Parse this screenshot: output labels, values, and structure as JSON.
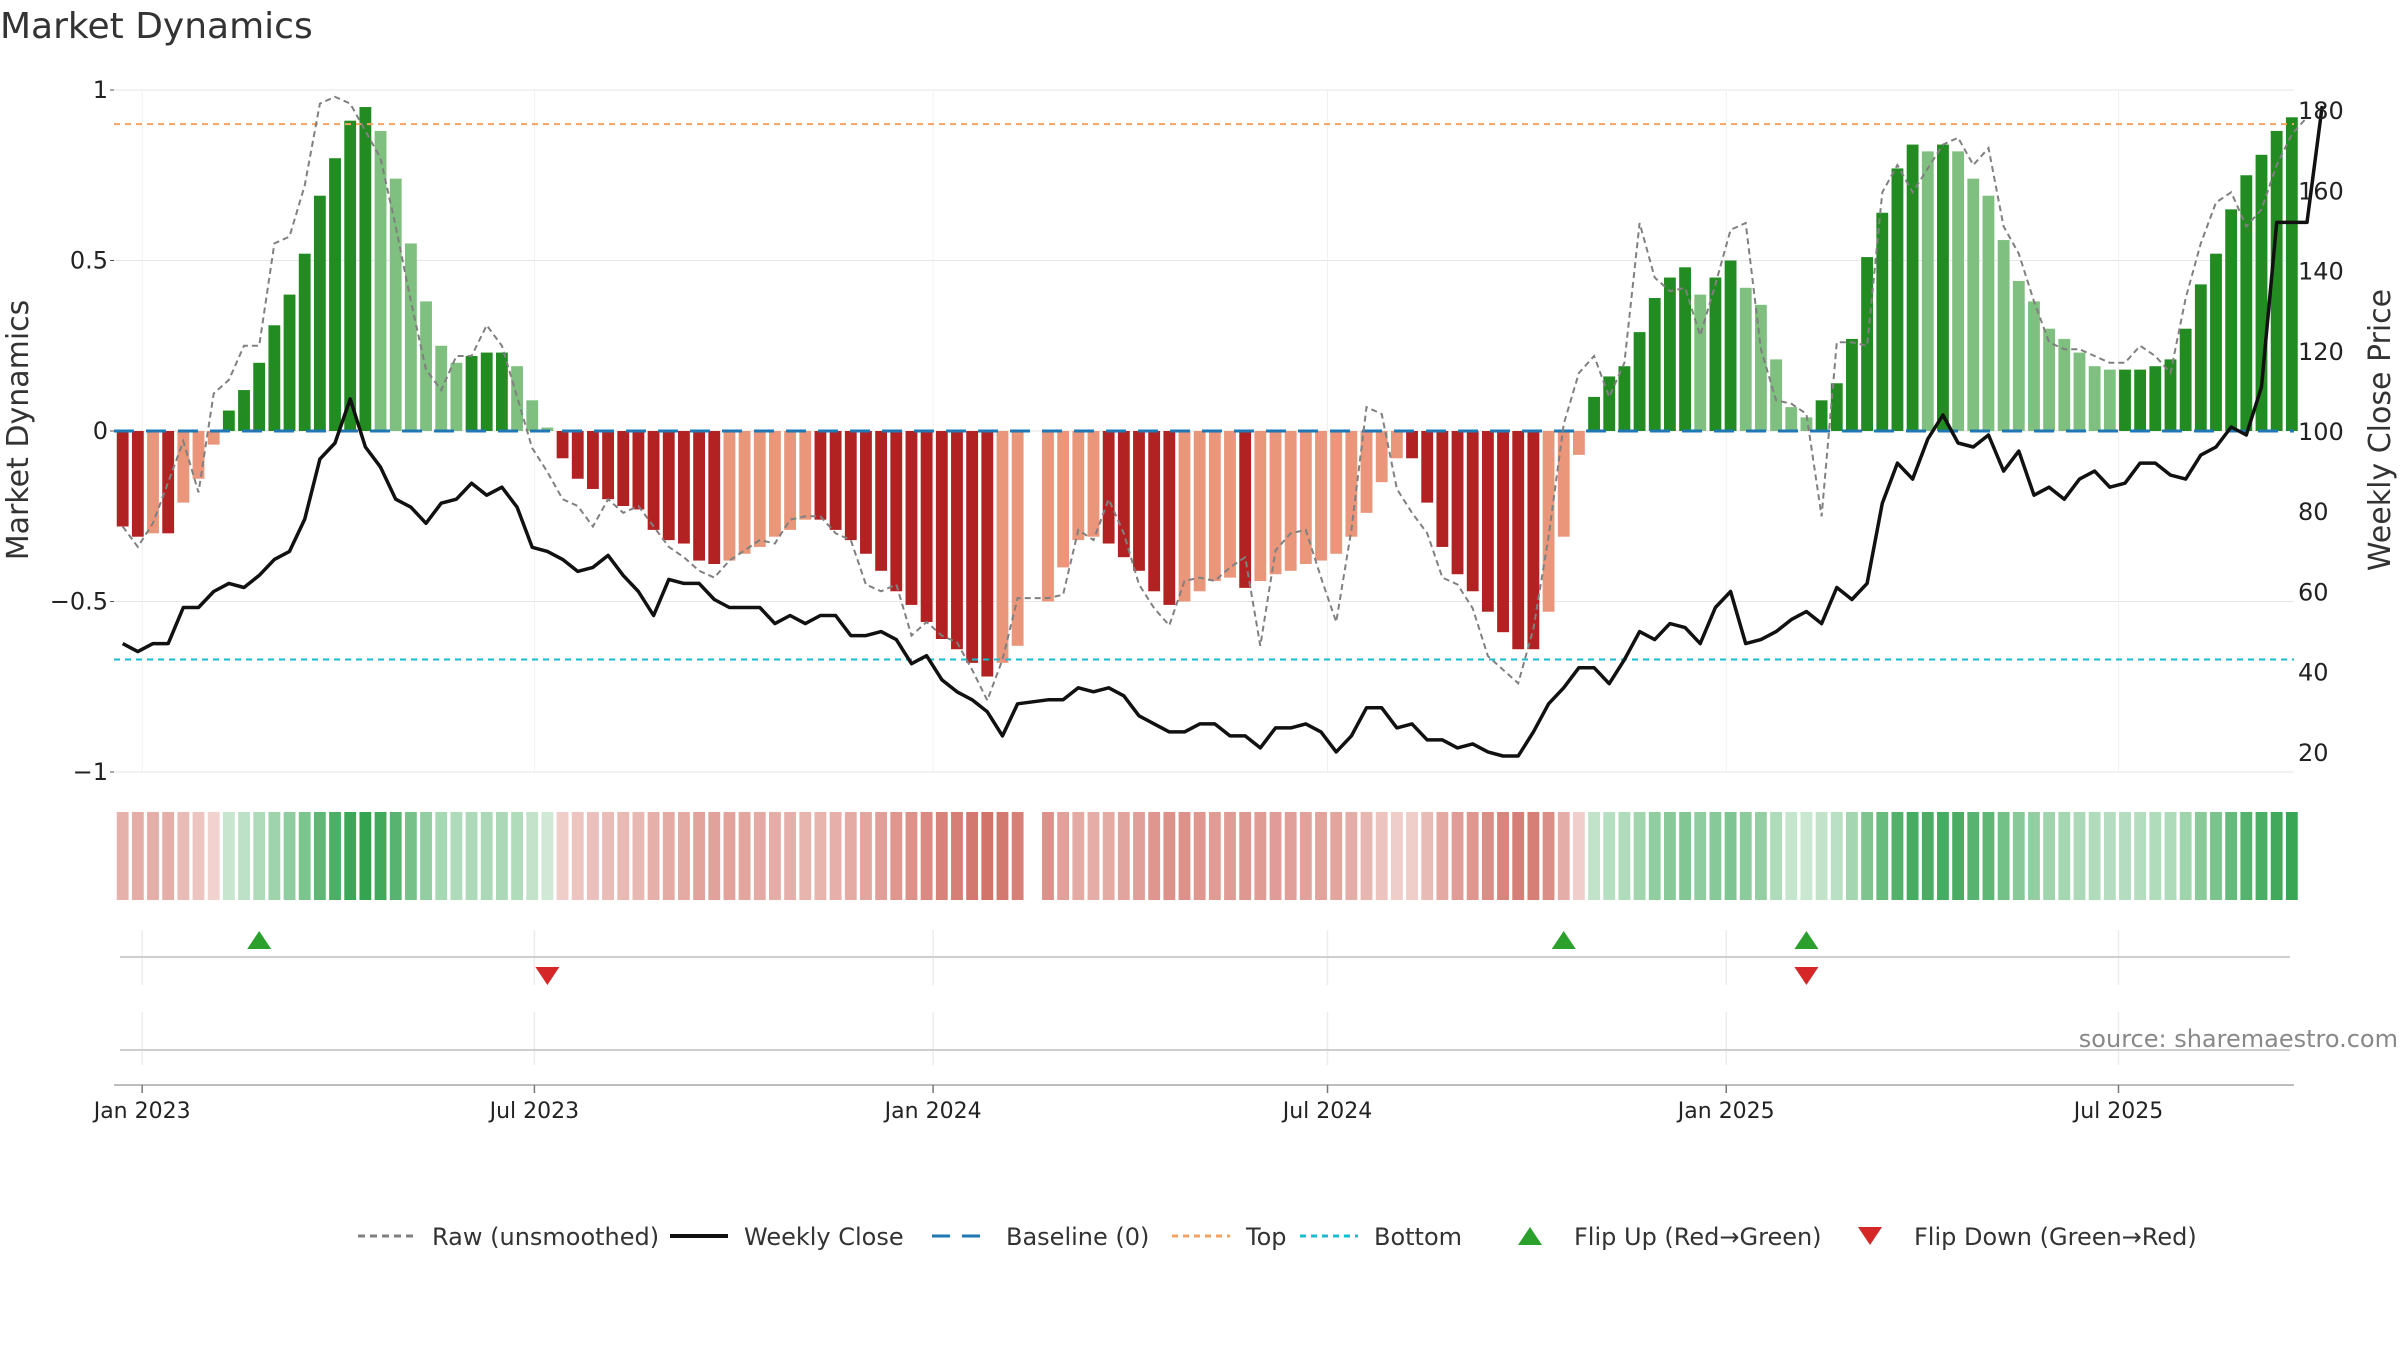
{
  "chart_data": {
    "type": "bar",
    "title": "Market Dynamics",
    "ylabel": "Market Dynamics",
    "y2label": "Weekly Close Price",
    "ylim": [
      -1.0,
      1.0
    ],
    "y2lim": [
      15,
      185
    ],
    "y_ticks": [
      1,
      0.5,
      0,
      -0.5,
      -1
    ],
    "y_tick_labels": [
      "1",
      "0.5",
      "0",
      "−0.5",
      "−1"
    ],
    "y2_ticks": [
      20,
      40,
      60,
      80,
      100,
      120,
      140,
      160,
      180
    ],
    "y2_tick_labels": [
      "20",
      "40",
      "60",
      "80",
      "100",
      "120",
      "140",
      "160",
      "180"
    ],
    "x_range": [
      "2022-12-19",
      "2025-09-20"
    ],
    "x_ticks": [
      "2023-01-01",
      "2023-07-01",
      "2024-01-01",
      "2024-07-01",
      "2025-01-01",
      "2025-07-01"
    ],
    "x_tick_labels": [
      "Jan 2023",
      "Jul 2023",
      "Jan 2024",
      "Jul 2024",
      "Jan 2025",
      "Jul 2025"
    ],
    "top_level": 0.9,
    "bottom_level": -0.67,
    "baseline": 0,
    "first_week": "2022-12-23",
    "gap_after_index": 59,
    "series": [
      {
        "name": "Market Dynamics",
        "values": [
          -0.28,
          -0.31,
          -0.3,
          -0.3,
          -0.21,
          -0.14,
          -0.04,
          0.06,
          0.12,
          0.2,
          0.31,
          0.4,
          0.52,
          0.69,
          0.8,
          0.91,
          0.95,
          0.88,
          0.74,
          0.55,
          0.38,
          0.25,
          0.2,
          0.22,
          0.23,
          0.23,
          0.19,
          0.09,
          0.01,
          -0.08,
          -0.14,
          -0.17,
          -0.2,
          -0.22,
          -0.23,
          -0.29,
          -0.32,
          -0.33,
          -0.38,
          -0.39,
          -0.38,
          -0.36,
          -0.34,
          -0.31,
          -0.29,
          -0.26,
          -0.26,
          -0.29,
          -0.32,
          -0.36,
          -0.41,
          -0.47,
          -0.51,
          -0.56,
          -0.61,
          -0.64,
          -0.68,
          -0.72,
          -0.68,
          -0.63,
          -0.5,
          -0.4,
          -0.32,
          -0.31,
          -0.33,
          -0.37,
          -0.41,
          -0.47,
          -0.51,
          -0.5,
          -0.47,
          -0.44,
          -0.43,
          -0.46,
          -0.44,
          -0.42,
          -0.41,
          -0.39,
          -0.38,
          -0.36,
          -0.31,
          -0.24,
          -0.15,
          -0.08,
          -0.08,
          -0.21,
          -0.34,
          -0.42,
          -0.47,
          -0.53,
          -0.59,
          -0.64,
          -0.64,
          -0.53,
          -0.31,
          -0.07,
          0.1,
          0.16,
          0.19,
          0.29,
          0.39,
          0.45,
          0.48,
          0.4,
          0.45,
          0.5,
          0.42,
          0.37,
          0.21,
          0.07,
          0.04,
          0.09,
          0.14,
          0.27,
          0.51,
          0.64,
          0.77,
          0.84,
          0.82,
          0.84,
          0.82,
          0.74,
          0.69,
          0.56,
          0.44,
          0.38,
          0.3,
          0.27,
          0.23,
          0.19,
          0.18,
          0.18,
          0.18,
          0.19,
          0.21,
          0.3,
          0.43,
          0.52,
          0.65,
          0.75,
          0.81,
          0.88,
          0.92
        ]
      },
      {
        "name": "Raw (unsmoothed)",
        "values": [
          -0.28,
          -0.34,
          -0.27,
          -0.15,
          -0.03,
          -0.18,
          0.11,
          0.15,
          0.25,
          0.25,
          0.55,
          0.57,
          0.72,
          0.96,
          0.98,
          0.96,
          0.88,
          0.8,
          0.6,
          0.38,
          0.18,
          0.12,
          0.22,
          0.22,
          0.31,
          0.25,
          0.1,
          -0.05,
          -0.12,
          -0.2,
          -0.22,
          -0.28,
          -0.2,
          -0.24,
          -0.22,
          -0.28,
          -0.34,
          -0.37,
          -0.41,
          -0.43,
          -0.38,
          -0.35,
          -0.32,
          -0.33,
          -0.26,
          -0.25,
          -0.25,
          -0.3,
          -0.32,
          -0.45,
          -0.47,
          -0.45,
          -0.6,
          -0.56,
          -0.6,
          -0.62,
          -0.7,
          -0.79,
          -0.67,
          -0.49,
          -0.49,
          -0.48,
          -0.29,
          -0.32,
          -0.2,
          -0.3,
          -0.45,
          -0.52,
          -0.57,
          -0.44,
          -0.43,
          -0.44,
          -0.4,
          -0.37,
          -0.63,
          -0.35,
          -0.3,
          -0.29,
          -0.43,
          -0.56,
          -0.29,
          0.07,
          0.05,
          -0.17,
          -0.24,
          -0.3,
          -0.43,
          -0.45,
          -0.52,
          -0.66,
          -0.7,
          -0.74,
          -0.58,
          -0.31,
          0.02,
          0.17,
          0.22,
          0.1,
          0.2,
          0.61,
          0.45,
          0.41,
          0.42,
          0.28,
          0.43,
          0.59,
          0.61,
          0.24,
          0.09,
          0.08,
          0.05,
          -0.25,
          0.26,
          0.26,
          0.25,
          0.7,
          0.78,
          0.7,
          0.77,
          0.84,
          0.86,
          0.78,
          0.83,
          0.6,
          0.52,
          0.38,
          0.26,
          0.24,
          0.24,
          0.22,
          0.2,
          0.2,
          0.25,
          0.22,
          0.17,
          0.39,
          0.55,
          0.67,
          0.7,
          0.6,
          0.65,
          0.78,
          0.87,
          0.92
        ]
      },
      {
        "name": "Weekly Close",
        "values": [
          47,
          45,
          47,
          47,
          56,
          56,
          60,
          62,
          61,
          64,
          68,
          70,
          78,
          93,
          97,
          108,
          96,
          91,
          83,
          81,
          77,
          82,
          83,
          87,
          84,
          86,
          81,
          71,
          70,
          68,
          65,
          66,
          69,
          64,
          60,
          54,
          63,
          62,
          62,
          58,
          56,
          56,
          56,
          52,
          54,
          52,
          54,
          54,
          49,
          49,
          50,
          48,
          42,
          44,
          38,
          35,
          33,
          30,
          24,
          32,
          33,
          33,
          36,
          35,
          36,
          34,
          29,
          27,
          25,
          25,
          27,
          27,
          24,
          24,
          21,
          26,
          26,
          27,
          25,
          20,
          24,
          31,
          31,
          26,
          27,
          23,
          23,
          21,
          22,
          20,
          19,
          19,
          25,
          32,
          36,
          41,
          41,
          37,
          43,
          50,
          48,
          52,
          51,
          47,
          56,
          60,
          47,
          48,
          50,
          53,
          55,
          52,
          61,
          58,
          62,
          82,
          92,
          88,
          98,
          104,
          97,
          96,
          99,
          90,
          95,
          84,
          86,
          83,
          88,
          90,
          86,
          87,
          92,
          92,
          89,
          88,
          94,
          96,
          101,
          99,
          111,
          152,
          152,
          152,
          181
        ]
      }
    ],
    "flips": {
      "up": [
        "2023-02-24",
        "2024-10-18",
        "2025-02-07"
      ],
      "down": [
        "2023-07-07",
        "2025-02-07"
      ]
    },
    "colors": {
      "bull_strong": "#228b22",
      "bull_weak": "#7fbf7f",
      "bear_strong": "#b22222",
      "bear_weak": "#e9967a",
      "raw": "#808080",
      "close": "#111111",
      "baseline": "#1f77b4",
      "top": "#f4a460",
      "bottom": "#17becf",
      "flip_up": "#2ca02c",
      "flip_down": "#d62728",
      "heat_green": "#2ca04a",
      "heat_red": "#c0392b"
    },
    "legend": {
      "placement": "bottom-center",
      "items": [
        {
          "label": "Raw (unsmoothed)",
          "kind": "dashed-line",
          "color": "#808080"
        },
        {
          "label": "Weekly Close",
          "kind": "line",
          "color": "#111111"
        },
        {
          "label": "Baseline (0)",
          "kind": "dashed-line",
          "color": "#1f77b4"
        },
        {
          "label": "Top",
          "kind": "dotted-line",
          "color": "#f4a460"
        },
        {
          "label": "Bottom",
          "kind": "dotted-line",
          "color": "#17becf"
        },
        {
          "label": "Flip Up (Red→Green)",
          "kind": "triangle-up",
          "color": "#2ca02c"
        },
        {
          "label": "Flip Down (Green→Red)",
          "kind": "triangle-down",
          "color": "#d62728"
        }
      ]
    },
    "grid": true,
    "source": "source: sharemaestro.com"
  }
}
